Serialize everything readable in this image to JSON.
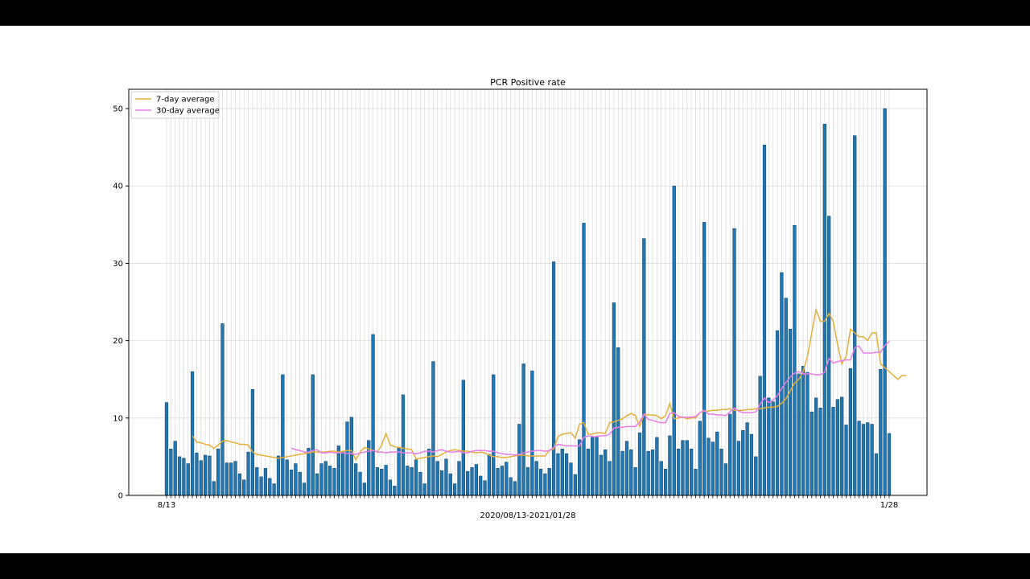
{
  "chart_data": {
    "type": "bar",
    "title": "PCR Positive rate",
    "xlabel": "2020/08/13-2021/01/28",
    "ylabel": "",
    "ylim": [
      0,
      52.5
    ],
    "yticks": [
      0,
      10,
      20,
      30,
      40,
      50
    ],
    "grid": true,
    "legend_position": "upper-left",
    "first_tick_label": "8/13",
    "last_tick_label": "1/28",
    "bar_color": "#1f77b4",
    "series": [
      {
        "name": "PCR Positive rate",
        "kind": "bar",
        "values": [
          12.0,
          6.0,
          7.0,
          5.0,
          4.8,
          4.1,
          16.0,
          5.5,
          4.5,
          5.2,
          5.1,
          1.8,
          6.0,
          22.2,
          4.2,
          4.2,
          4.4,
          2.8,
          2.0,
          5.6,
          13.7,
          3.6,
          2.4,
          3.5,
          2.2,
          1.5,
          5.1,
          15.6,
          4.6,
          3.3,
          4.1,
          3.0,
          1.6,
          6.1,
          15.6,
          2.8,
          4.1,
          4.4,
          3.8,
          3.5,
          6.4,
          5.6,
          9.5,
          10.1,
          4.1,
          3.0,
          1.6,
          7.1,
          20.8,
          3.6,
          3.4,
          3.9,
          2.0,
          1.2,
          6.1,
          13.0,
          3.8,
          3.6,
          4.6,
          3.0,
          1.5,
          6.0,
          17.3,
          4.4,
          3.2,
          4.7,
          2.8,
          1.5,
          4.4,
          14.9,
          3.1,
          3.6,
          4.0,
          2.5,
          1.9,
          5.3,
          15.6,
          3.5,
          3.8,
          4.3,
          2.3,
          1.8,
          9.2,
          17.0,
          3.6,
          16.1,
          4.4,
          3.4,
          2.8,
          3.5,
          30.2,
          5.4,
          6.0,
          5.4,
          4.2,
          2.7,
          7.2,
          35.2,
          6.0,
          7.5,
          7.5,
          5.2,
          5.9,
          4.4,
          24.9,
          19.1,
          5.7,
          7.0,
          5.9,
          3.6,
          8.1,
          33.2,
          5.7,
          5.9,
          7.5,
          4.4,
          3.4,
          7.7,
          40.0,
          6.0,
          7.1,
          7.1,
          6.0,
          3.4,
          9.6,
          35.3,
          7.4,
          6.9,
          8.2,
          6.0,
          4.1,
          10.5,
          34.5,
          7.0,
          8.4,
          9.4,
          7.9,
          5.0,
          15.4,
          45.3,
          12.6,
          12.1,
          21.3,
          28.8,
          25.5,
          21.5,
          34.9,
          15.7,
          16.7,
          15.9,
          10.8,
          12.6,
          11.3,
          48.0,
          36.1,
          11.4,
          12.4,
          12.7,
          9.1,
          16.4,
          46.5,
          9.6,
          9.2,
          9.4,
          9.2,
          5.4,
          16.3,
          50.0,
          8.0
        ]
      },
      {
        "name": "7-day average",
        "kind": "line",
        "color": "#e5ae38",
        "start_index": 6,
        "values": [
          7.7,
          6.9,
          6.8,
          6.6,
          6.5,
          6.1,
          6.5,
          7.0,
          7.1,
          6.9,
          6.8,
          6.6,
          6.6,
          6.5,
          5.6,
          5.3,
          5.2,
          5.1,
          5.0,
          4.9,
          4.8,
          4.9,
          5.0,
          5.1,
          5.2,
          5.3,
          5.4,
          5.5,
          5.6,
          5.6,
          5.6,
          5.6,
          5.7,
          5.7,
          5.6,
          5.7,
          5.8,
          5.8,
          4.6,
          5.6,
          6.2,
          6.0,
          5.8,
          5.6,
          6.5,
          8.0,
          6.5,
          6.3,
          6.2,
          6.1,
          6.0,
          5.9,
          4.7,
          4.8,
          4.9,
          5.0,
          5.1,
          5.0,
          5.3,
          5.6,
          5.8,
          5.9,
          5.8,
          5.7,
          5.7,
          5.6,
          5.5,
          5.6,
          5.5,
          5.2,
          5.0,
          5.0,
          4.9,
          4.9,
          5.0,
          5.1,
          5.2,
          5.2,
          5.1,
          5.1,
          5.1,
          5.1,
          5.1,
          5.8,
          6.0,
          7.6,
          7.9,
          8.0,
          8.1,
          7.4,
          9.2,
          9.4,
          7.9,
          7.9,
          8.1,
          8.1,
          8.0,
          9.4,
          9.5,
          9.7,
          9.9,
          10.3,
          10.6,
          10.3,
          8.9,
          10.5,
          10.4,
          10.4,
          10.3,
          9.9,
          10.3,
          11.9,
          9.9,
          10.0,
          10.1,
          9.9,
          10.0,
          10.0,
          10.7,
          10.9,
          10.9,
          11.0,
          11.0,
          11.1,
          11.1,
          11.2,
          11.0,
          11.0,
          11.0,
          11.1,
          11.1,
          11.2,
          11.2,
          11.3,
          11.4,
          11.4,
          11.5,
          11.9,
          12.5,
          13.5,
          14.5,
          15.0,
          16.0,
          18.0,
          21.0,
          24.0,
          22.5,
          22.5,
          23.5,
          22.5,
          19.5,
          17.0,
          18.0,
          21.5,
          21.0,
          20.5,
          20.5,
          20.0,
          21.0,
          21.0,
          17.0,
          16.5,
          16.0,
          15.5,
          15.0,
          15.5,
          15.5
        ]
      },
      {
        "name": "30-day average",
        "kind": "line",
        "color": "#e87ce8",
        "start_index": 29,
        "values": [
          6.1,
          5.9,
          5.8,
          5.6,
          5.6,
          5.8,
          5.9,
          5.5,
          5.5,
          5.6,
          5.5,
          5.5,
          5.5,
          5.4,
          5.4,
          5.3,
          5.5,
          5.6,
          5.7,
          5.8,
          5.6,
          5.6,
          5.5,
          5.6,
          5.6,
          5.6,
          5.5,
          5.5,
          5.5,
          5.4,
          5.5,
          5.7,
          5.7,
          5.6,
          5.8,
          5.9,
          5.7,
          5.6,
          5.6,
          5.7,
          5.5,
          5.5,
          5.7,
          5.8,
          5.8,
          5.8,
          5.7,
          5.7,
          5.5,
          5.4,
          5.3,
          5.3,
          5.2,
          5.3,
          5.5,
          5.6,
          5.7,
          5.8,
          5.8,
          5.7,
          5.8,
          6.2,
          6.6,
          6.5,
          6.4,
          6.4,
          6.4,
          6.4,
          7.5,
          7.7,
          7.6,
          7.6,
          7.7,
          7.7,
          7.9,
          8.7,
          8.8,
          8.8,
          8.9,
          8.9,
          8.9,
          9.5,
          10.5,
          9.8,
          9.7,
          9.5,
          9.4,
          9.4,
          10.6,
          10.7,
          10.2,
          10.1,
          10.1,
          10.1,
          10.2,
          10.7,
          11.0,
          10.5,
          10.5,
          10.4,
          10.4,
          10.3,
          10.8,
          11.3,
          10.9,
          10.7,
          10.7,
          10.7,
          10.8,
          11.8,
          12.6,
          12.0,
          12.3,
          12.9,
          13.8,
          14.6,
          15.3,
          15.8,
          16.0,
          15.7,
          15.7,
          15.7,
          15.6,
          15.6,
          15.9,
          17.7,
          17.1,
          17.3,
          17.4,
          17.5,
          17.5,
          19.1,
          19.3,
          18.4,
          18.4,
          18.4,
          18.5,
          18.5,
          19.4,
          19.9
        ]
      }
    ]
  }
}
